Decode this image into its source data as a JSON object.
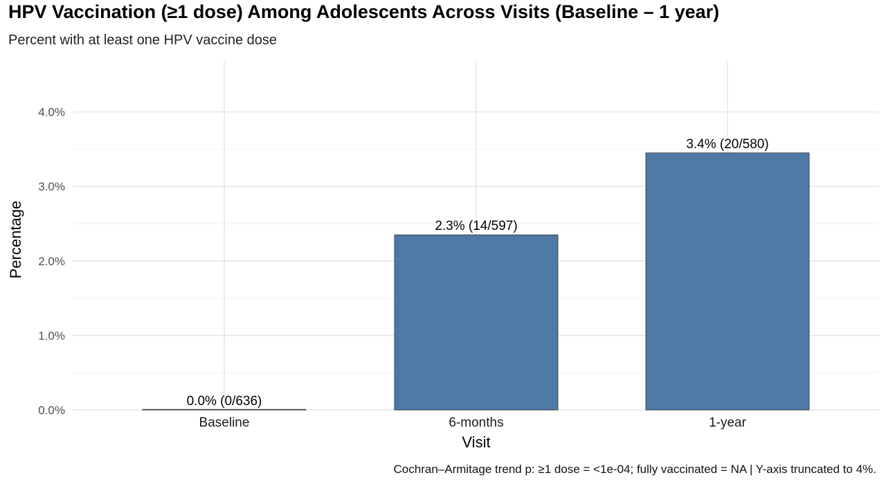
{
  "chart_data": {
    "type": "bar",
    "title": "HPV Vaccination (≥1 dose) Among Adolescents Across Visits (Baseline – 1 year)",
    "subtitle": "Percent with at least one HPV vaccine dose",
    "xlabel": "Visit",
    "ylabel": "Percentage",
    "categories": [
      "Baseline",
      "6-months",
      "1-year"
    ],
    "values": [
      0.0,
      2.35,
      3.45
    ],
    "data_labels": [
      "0.0% (0/636)",
      "2.3% (14/597)",
      "3.4% (20/580)"
    ],
    "ylim": [
      0,
      4.5
    ],
    "yticks": [
      0,
      1,
      2,
      3,
      4
    ],
    "ytick_labels": [
      "0.0%",
      "1.0%",
      "2.0%",
      "3.0%",
      "4.0%"
    ],
    "grid": true,
    "bar_color": "#4E79A7",
    "caption": "Cochran–Armitage trend p: ≥1 dose = <1e-04; fully vaccinated = NA | Y-axis truncated to 4%."
  }
}
